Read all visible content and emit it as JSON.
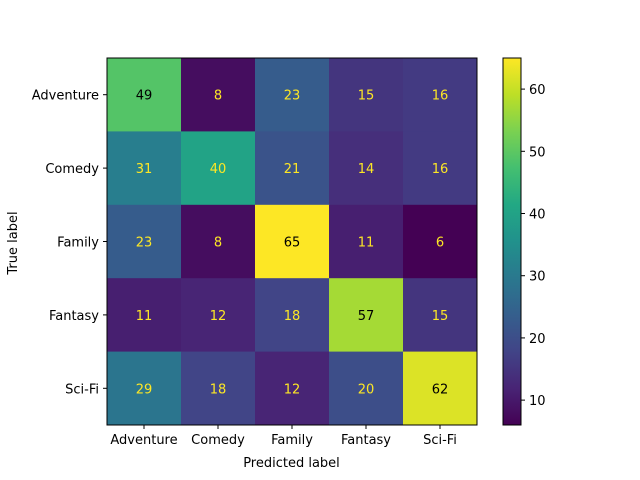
{
  "chart_data": {
    "type": "heatmap",
    "title": "",
    "xlabel": "Predicted label",
    "ylabel": "True label",
    "x_categories": [
      "Adventure",
      "Comedy",
      "Family",
      "Fantasy",
      "Sci-Fi"
    ],
    "y_categories": [
      "Adventure",
      "Comedy",
      "Family",
      "Fantasy",
      "Sci-Fi"
    ],
    "values": [
      [
        49,
        8,
        23,
        15,
        16
      ],
      [
        31,
        40,
        21,
        14,
        16
      ],
      [
        23,
        8,
        65,
        11,
        6
      ],
      [
        11,
        12,
        18,
        57,
        15
      ],
      [
        29,
        18,
        12,
        20,
        62
      ]
    ],
    "colormap": "viridis",
    "vmin": 6,
    "vmax": 65,
    "colorbar_ticks": [
      10,
      20,
      30,
      40,
      50,
      60
    ],
    "text_color_dark_cell": "#fde725",
    "text_color_light_cell": "#000000"
  }
}
